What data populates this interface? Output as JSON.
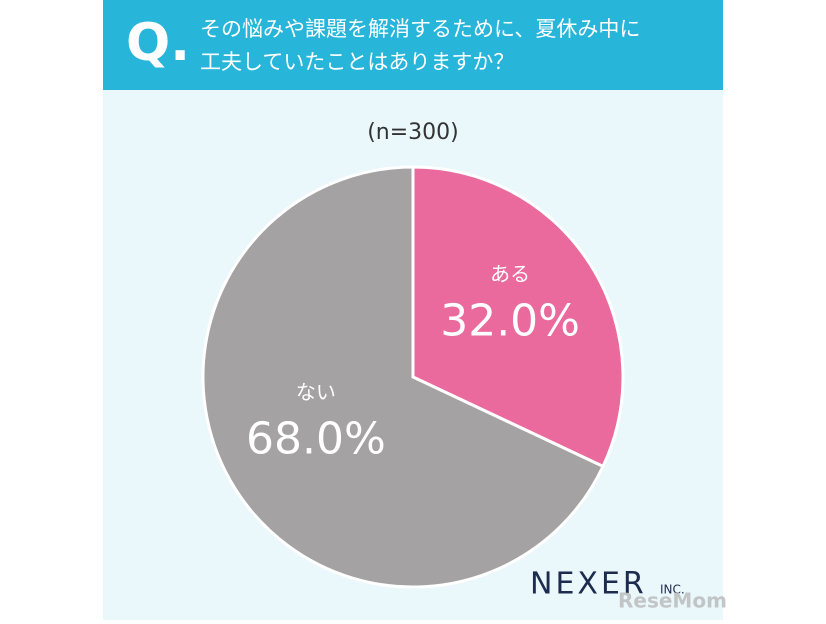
{
  "chart_data": {
    "type": "pie",
    "question_mark": "Q.",
    "title_lines": [
      "その悩みや課題を解消するために、夏休み中に",
      "工夫していたことはありますか？"
    ],
    "subtitle": "(n=300)",
    "categories": [
      "ある",
      "ない"
    ],
    "values": [
      32.0,
      68.0
    ],
    "value_labels": [
      "32.0%",
      "68.0%"
    ],
    "colors": [
      "#ea6a9e",
      "#a4a2a3"
    ],
    "brand": "NEXER",
    "brand_suffix": "INC.",
    "watermark": "ReseMom"
  }
}
